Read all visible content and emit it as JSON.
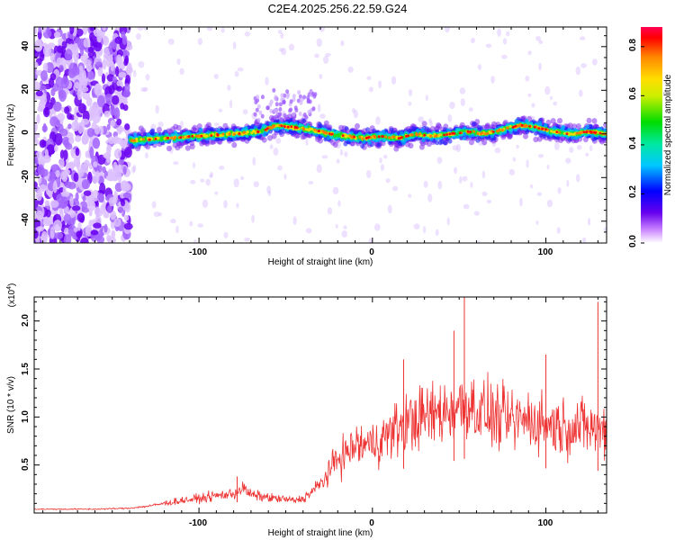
{
  "figure": {
    "title": "C2E4.2025.256.22.59.G24"
  },
  "chart_data": [
    {
      "type": "heatmap",
      "title": "",
      "xlabel": "Height of straight line (km)",
      "ylabel": "Frequency (Hz)",
      "xlim": [
        -195,
        135
      ],
      "ylim": [
        -50,
        49
      ],
      "xticks": [
        -100,
        0,
        100
      ],
      "xtick_labels": [
        "-100",
        "0",
        "100"
      ],
      "yticks": [
        -40,
        -20,
        0,
        20,
        40
      ],
      "ytick_labels": [
        "-40",
        "-20",
        "0",
        "20",
        "40"
      ],
      "noise_region_end_km": -140,
      "ridge": {
        "x": [
          -140,
          -120,
          -100,
          -80,
          -65,
          -55,
          -45,
          -35,
          -25,
          -15,
          -5,
          5,
          15,
          25,
          35,
          45,
          55,
          65,
          75,
          85,
          95,
          105,
          115,
          125,
          135
        ],
        "frequency": [
          -3,
          -2,
          -1,
          0,
          1,
          4,
          3,
          2,
          0,
          -1,
          -2,
          -1,
          -2,
          0,
          -1,
          0,
          1,
          0,
          2,
          4,
          3,
          1,
          0,
          1,
          0
        ]
      },
      "colorbar": {
        "label": "Normalized spectral amplitude",
        "range": [
          0.0,
          0.88
        ],
        "ticks": [
          0.0,
          0.2,
          0.4,
          0.6,
          0.8
        ],
        "tick_labels": [
          "0.0",
          "0.2",
          "0.4",
          "0.6",
          "0.8"
        ]
      }
    },
    {
      "type": "line",
      "title": "",
      "xlabel": "Height of straight line (km)",
      "ylabel": "SNR (10 * v/v)",
      "y_multiplier": "(x10",
      "y_multiplier_exp": "4",
      "y_multiplier_close": ")",
      "xlim": [
        -195,
        135
      ],
      "ylim": [
        0,
        2.25
      ],
      "xticks": [
        -100,
        0,
        100
      ],
      "xtick_labels": [
        "-100",
        "0",
        "100"
      ],
      "yticks": [
        0.5,
        1.0,
        1.5,
        2.0
      ],
      "ytick_labels": [
        "0.5",
        "1.0",
        "1.5",
        "2.0"
      ],
      "series": [
        {
          "name": "SNR",
          "color": "#ee3333",
          "x": [
            -195,
            -180,
            -160,
            -140,
            -130,
            -120,
            -110,
            -100,
            -90,
            -80,
            -75,
            -70,
            -60,
            -50,
            -45,
            -40,
            -35,
            -30,
            -25,
            -20,
            -15,
            -10,
            0,
            10,
            20,
            30,
            40,
            50,
            55,
            60,
            70,
            80,
            90,
            100,
            110,
            120,
            130,
            135
          ],
          "values": [
            0.04,
            0.04,
            0.04,
            0.05,
            0.07,
            0.1,
            0.13,
            0.15,
            0.18,
            0.2,
            0.26,
            0.19,
            0.16,
            0.14,
            0.13,
            0.15,
            0.22,
            0.3,
            0.42,
            0.58,
            0.62,
            0.7,
            0.72,
            0.82,
            0.95,
            1.0,
            1.05,
            1.1,
            1.15,
            1.08,
            1.0,
            0.95,
            0.98,
            0.93,
            0.9,
            0.9,
            0.88,
            0.85
          ]
        }
      ],
      "peaks": [
        {
          "x": 53,
          "y": 2.25
        },
        {
          "x": 130,
          "y": 2.2
        },
        {
          "x": 47,
          "y": 1.9
        },
        {
          "x": 18,
          "y": 1.6
        },
        {
          "x": 100,
          "y": 1.65
        },
        {
          "x": -78,
          "y": 0.38
        }
      ]
    }
  ]
}
